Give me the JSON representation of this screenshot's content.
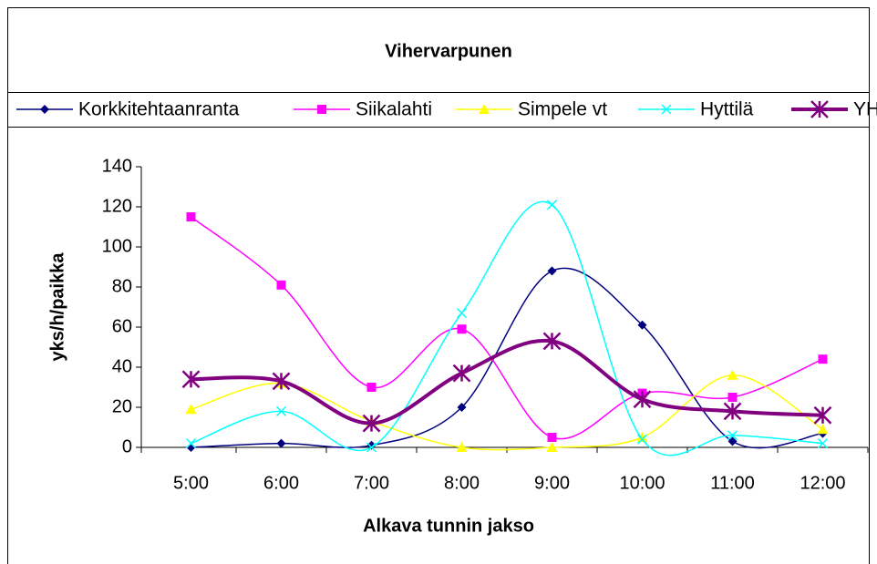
{
  "chart_data": {
    "type": "line",
    "title": "Vihervarpunen",
    "x_label": "Alkava tunnin jakso",
    "y_label": "yks/h/paikka",
    "categories": [
      "5:00",
      "6:00",
      "7:00",
      "8:00",
      "9:00",
      "10:00",
      "11:00",
      "12:00"
    ],
    "series": [
      {
        "name": "Korkkitehtaanranta",
        "color": "#000080",
        "marker": "diamond",
        "values": [
          0,
          2,
          1,
          20,
          88,
          61,
          3,
          7
        ]
      },
      {
        "name": "Siikalahti",
        "color": "#ff00ff",
        "marker": "square",
        "values": [
          115,
          81,
          30,
          59,
          5,
          27,
          25,
          44
        ]
      },
      {
        "name": "Simpele vt",
        "color": "#ffff00",
        "marker": "triangle",
        "values": [
          19,
          32,
          13,
          0,
          0,
          5,
          36,
          9
        ]
      },
      {
        "name": "Hyttilä",
        "color": "#00ffff",
        "marker": "x",
        "values": [
          2,
          18,
          0,
          67,
          121,
          4,
          6,
          2
        ]
      },
      {
        "name": "YHT",
        "color": "#800080",
        "marker": "star",
        "values": [
          34,
          33,
          12,
          37,
          53,
          24,
          18,
          16
        ]
      }
    ],
    "ylim": [
      0,
      140
    ],
    "yticks": [
      0,
      20,
      40,
      60,
      80,
      100,
      120,
      140
    ],
    "smooth": true,
    "legend": "top"
  }
}
